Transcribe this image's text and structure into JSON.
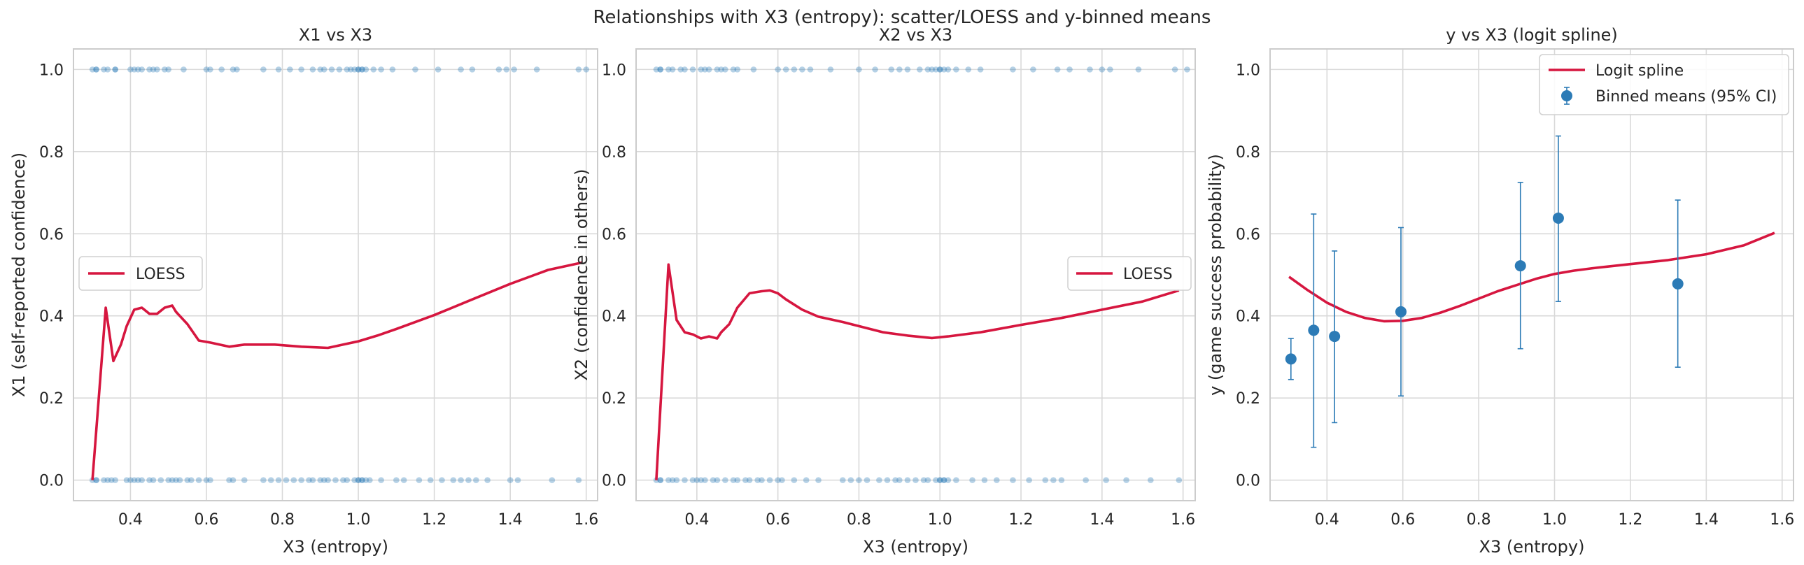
{
  "suptitle": "Relationships with X3 (entropy): scatter/LOESS and y-binned means",
  "chart_data": [
    {
      "type": "scatter",
      "title": "X1 vs X3",
      "xlabel": "X3 (entropy)",
      "ylabel": "X1 (self-reported confidence)",
      "xlim": [
        0.25,
        1.63
      ],
      "ylim": [
        -0.05,
        1.05
      ],
      "xticks": [
        0.4,
        0.6,
        0.8,
        1.0,
        1.2,
        1.4,
        1.6
      ],
      "yticks": [
        0.0,
        0.2,
        0.4,
        0.6,
        0.8,
        1.0
      ],
      "grid": true,
      "legend": {
        "position": "center-left",
        "entries": [
          "LOESS"
        ]
      },
      "scatter_y1_x": [
        0.3,
        0.31,
        0.31,
        0.33,
        0.34,
        0.36,
        0.36,
        0.4,
        0.41,
        0.42,
        0.43,
        0.45,
        0.46,
        0.47,
        0.49,
        0.5,
        0.54,
        0.6,
        0.61,
        0.64,
        0.67,
        0.68,
        0.75,
        0.79,
        0.82,
        0.85,
        0.88,
        0.9,
        0.91,
        0.93,
        0.95,
        0.97,
        0.98,
        0.99,
        1.0,
        1.0,
        1.01,
        1.01,
        1.02,
        1.04,
        1.06,
        1.09,
        1.15,
        1.21,
        1.27,
        1.3,
        1.37,
        1.39,
        1.41,
        1.47,
        1.58,
        1.6
      ],
      "scatter_y0_x": [
        0.3,
        0.31,
        0.31,
        0.33,
        0.34,
        0.35,
        0.36,
        0.39,
        0.4,
        0.41,
        0.42,
        0.43,
        0.45,
        0.46,
        0.48,
        0.5,
        0.51,
        0.52,
        0.53,
        0.55,
        0.56,
        0.58,
        0.6,
        0.61,
        0.66,
        0.67,
        0.7,
        0.75,
        0.77,
        0.79,
        0.81,
        0.83,
        0.85,
        0.87,
        0.88,
        0.9,
        0.91,
        0.92,
        0.94,
        0.96,
        0.97,
        0.99,
        1.0,
        1.0,
        1.01,
        1.01,
        1.02,
        1.03,
        1.06,
        1.1,
        1.12,
        1.16,
        1.19,
        1.22,
        1.25,
        1.27,
        1.29,
        1.31,
        1.34,
        1.4,
        1.42,
        1.51,
        1.58
      ],
      "series": [
        {
          "name": "LOESS",
          "x": [
            0.3,
            0.335,
            0.355,
            0.375,
            0.39,
            0.41,
            0.43,
            0.45,
            0.47,
            0.49,
            0.51,
            0.52,
            0.55,
            0.58,
            0.61,
            0.66,
            0.7,
            0.78,
            0.85,
            0.92,
            0.96,
            1.0,
            1.05,
            1.1,
            1.2,
            1.3,
            1.4,
            1.5,
            1.59
          ],
          "y": [
            0.0,
            0.42,
            0.29,
            0.33,
            0.375,
            0.415,
            0.42,
            0.405,
            0.405,
            0.42,
            0.425,
            0.41,
            0.38,
            0.34,
            0.335,
            0.325,
            0.33,
            0.33,
            0.325,
            0.322,
            0.33,
            0.338,
            0.352,
            0.368,
            0.402,
            0.44,
            0.478,
            0.512,
            0.53
          ]
        }
      ]
    },
    {
      "type": "scatter",
      "title": "X2 vs X3",
      "xlabel": "X3 (entropy)",
      "ylabel": "X2 (confidence in others)",
      "xlim": [
        0.25,
        1.63
      ],
      "ylim": [
        -0.05,
        1.05
      ],
      "xticks": [
        0.4,
        0.6,
        0.8,
        1.0,
        1.2,
        1.4,
        1.6
      ],
      "yticks": [
        0.0,
        0.2,
        0.4,
        0.6,
        0.8,
        1.0
      ],
      "grid": true,
      "legend": {
        "position": "center-right",
        "entries": [
          "LOESS"
        ]
      },
      "scatter_y1_x": [
        0.3,
        0.31,
        0.31,
        0.33,
        0.34,
        0.36,
        0.37,
        0.39,
        0.41,
        0.42,
        0.43,
        0.45,
        0.46,
        0.47,
        0.49,
        0.5,
        0.54,
        0.6,
        0.62,
        0.64,
        0.66,
        0.68,
        0.73,
        0.8,
        0.84,
        0.88,
        0.9,
        0.92,
        0.95,
        0.97,
        0.98,
        0.99,
        1.0,
        1.0,
        1.01,
        1.02,
        1.04,
        1.07,
        1.1,
        1.18,
        1.23,
        1.29,
        1.32,
        1.37,
        1.4,
        1.42,
        1.49,
        1.58,
        1.61
      ],
      "scatter_y0_x": [
        0.3,
        0.31,
        0.31,
        0.33,
        0.34,
        0.35,
        0.37,
        0.39,
        0.4,
        0.41,
        0.42,
        0.44,
        0.45,
        0.47,
        0.49,
        0.5,
        0.52,
        0.53,
        0.55,
        0.56,
        0.58,
        0.6,
        0.61,
        0.64,
        0.67,
        0.7,
        0.76,
        0.78,
        0.8,
        0.82,
        0.85,
        0.87,
        0.89,
        0.9,
        0.92,
        0.94,
        0.96,
        0.97,
        0.99,
        1.0,
        1.0,
        1.01,
        1.01,
        1.02,
        1.04,
        1.08,
        1.11,
        1.14,
        1.18,
        1.22,
        1.26,
        1.28,
        1.3,
        1.36,
        1.41,
        1.46,
        1.52,
        1.59
      ],
      "series": [
        {
          "name": "LOESS",
          "x": [
            0.3,
            0.33,
            0.35,
            0.37,
            0.39,
            0.41,
            0.43,
            0.45,
            0.46,
            0.48,
            0.5,
            0.53,
            0.56,
            0.58,
            0.6,
            0.62,
            0.66,
            0.7,
            0.76,
            0.8,
            0.86,
            0.92,
            0.98,
            1.02,
            1.1,
            1.2,
            1.3,
            1.4,
            1.5,
            1.59
          ],
          "y": [
            0.0,
            0.525,
            0.39,
            0.36,
            0.355,
            0.345,
            0.35,
            0.345,
            0.36,
            0.38,
            0.42,
            0.455,
            0.46,
            0.462,
            0.455,
            0.44,
            0.415,
            0.398,
            0.385,
            0.375,
            0.36,
            0.352,
            0.346,
            0.35,
            0.36,
            0.378,
            0.395,
            0.415,
            0.435,
            0.462
          ]
        }
      ]
    },
    {
      "type": "line",
      "title": "y vs X3 (logit spline)",
      "xlabel": "X3 (entropy)",
      "ylabel": "y (game success probability)",
      "xlim": [
        0.25,
        1.63
      ],
      "ylim": [
        -0.05,
        1.05
      ],
      "xticks": [
        0.4,
        0.6,
        0.8,
        1.0,
        1.2,
        1.4,
        1.6
      ],
      "yticks": [
        0.0,
        0.2,
        0.4,
        0.6,
        0.8,
        1.0
      ],
      "grid": true,
      "legend": {
        "position": "top-right",
        "entries": [
          "Logit spline",
          "Binned means (95% CI)"
        ]
      },
      "series": [
        {
          "name": "Logit spline",
          "x": [
            0.3,
            0.35,
            0.4,
            0.45,
            0.5,
            0.55,
            0.6,
            0.65,
            0.7,
            0.75,
            0.8,
            0.85,
            0.9,
            0.95,
            1.0,
            1.05,
            1.1,
            1.2,
            1.3,
            1.4,
            1.5,
            1.58
          ],
          "y": [
            0.495,
            0.462,
            0.432,
            0.41,
            0.395,
            0.387,
            0.388,
            0.395,
            0.408,
            0.424,
            0.442,
            0.46,
            0.475,
            0.49,
            0.502,
            0.51,
            0.516,
            0.526,
            0.536,
            0.55,
            0.572,
            0.602
          ]
        },
        {
          "name": "Binned means (95% CI)",
          "x": [
            0.305,
            0.365,
            0.42,
            0.595,
            0.91,
            1.01,
            1.325
          ],
          "y": [
            0.295,
            0.365,
            0.35,
            0.41,
            0.522,
            0.638,
            0.478
          ],
          "lo": [
            0.245,
            0.08,
            0.14,
            0.205,
            0.32,
            0.435,
            0.275
          ],
          "hi": [
            0.345,
            0.648,
            0.558,
            0.615,
            0.725,
            0.838,
            0.682
          ]
        }
      ]
    }
  ]
}
